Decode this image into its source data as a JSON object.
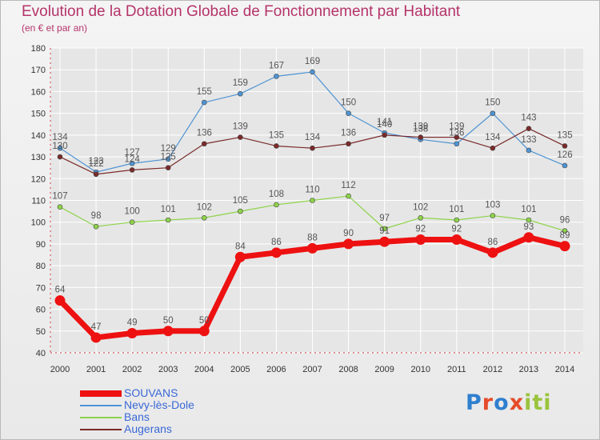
{
  "title": "Evolution de la Dotation Globale de Fonctionnement par Habitant",
  "subtitle": "(en € et par an)",
  "brand": "Proxiti",
  "colors": {
    "title": "#b5346a",
    "grid": "#ffffff",
    "axis": "#d83c3c",
    "tick_text": "#333333",
    "label_text": "#555555",
    "legend_text": "#3a68d6"
  },
  "chart_data": {
    "type": "line",
    "title": "Evolution de la Dotation Globale de Fonctionnement par Habitant",
    "subtitle": "(en € et par an)",
    "xlabel": "",
    "ylabel": "",
    "ylim": [
      40,
      180
    ],
    "ytick_step": 10,
    "grid": true,
    "legend_position": "bottom-left",
    "categories": [
      "2000",
      "2001",
      "2002",
      "2003",
      "2004",
      "2005",
      "2006",
      "2007",
      "2008",
      "2009",
      "2010",
      "2011",
      "2012",
      "2013",
      "2014"
    ],
    "series": [
      {
        "name": "SOUVANS",
        "color": "#ee1111",
        "emphasis": true,
        "values": [
          64,
          47,
          49,
          50,
          50,
          84,
          86,
          88,
          90,
          91,
          92,
          92,
          86,
          93,
          89
        ]
      },
      {
        "name": "Nevy-lès-Dole",
        "color": "#4f94d4",
        "emphasis": false,
        "values": [
          134,
          123,
          127,
          129,
          155,
          159,
          167,
          169,
          150,
          141,
          138,
          136,
          150,
          133,
          126
        ]
      },
      {
        "name": "Bans",
        "color": "#8ed34a",
        "emphasis": false,
        "values": [
          107,
          98,
          100,
          101,
          102,
          105,
          108,
          110,
          112,
          97,
          102,
          101,
          103,
          101,
          96
        ]
      },
      {
        "name": "Augerans",
        "color": "#7a2a2a",
        "emphasis": false,
        "values": [
          130,
          122,
          124,
          125,
          136,
          139,
          135,
          134,
          136,
          140,
          139,
          139,
          134,
          143,
          135
        ]
      }
    ]
  }
}
